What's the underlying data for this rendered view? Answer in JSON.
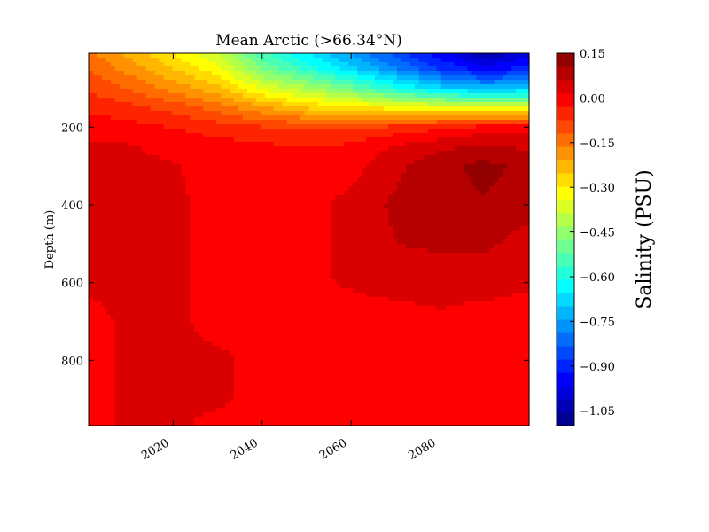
{
  "chart_data": {
    "type": "heatmap",
    "title": "Mean Arctic (>66.34°N)",
    "xlabel": "",
    "ylabel": "Depth (m)",
    "xlim": [
      2001,
      2100
    ],
    "ylim": [
      968,
      10
    ],
    "x_ticks": [
      2020,
      2040,
      2060,
      2080
    ],
    "x_tick_labels": [
      "2020",
      "2040",
      "2060",
      "2080"
    ],
    "y_ticks": [
      200,
      400,
      600,
      800
    ],
    "y_tick_labels": [
      "200",
      "400",
      "600",
      "800"
    ],
    "colorbar": {
      "label": "Salinity (PSU)",
      "range": [
        -1.1,
        0.15
      ],
      "ticks": [
        0.15,
        0.0,
        -0.15,
        -0.3,
        -0.45,
        -0.6,
        -0.75,
        -0.9,
        -1.05
      ],
      "tick_labels": [
        "0.15",
        "0.00",
        "−0.15",
        "−0.30",
        "−0.45",
        "−0.60",
        "−0.75",
        "−0.90",
        "−1.05"
      ],
      "colormap": "jet"
    },
    "years": [
      2001,
      2010,
      2020,
      2030,
      2040,
      2050,
      2060,
      2070,
      2080,
      2090,
      2100
    ],
    "depths": [
      10,
      50,
      100,
      150,
      200,
      250,
      300,
      400,
      500,
      600,
      700,
      800,
      900,
      968
    ],
    "values": [
      [
        -0.15,
        -0.22,
        -0.3,
        -0.38,
        -0.55,
        -0.65,
        -0.75,
        -0.85,
        -0.95,
        -1.05,
        -0.98
      ],
      [
        -0.12,
        -0.18,
        -0.25,
        -0.33,
        -0.48,
        -0.58,
        -0.68,
        -0.78,
        -0.88,
        -0.95,
        -0.9
      ],
      [
        -0.08,
        -0.12,
        -0.18,
        -0.24,
        -0.35,
        -0.42,
        -0.5,
        -0.6,
        -0.68,
        -0.72,
        -0.7
      ],
      [
        -0.04,
        -0.06,
        -0.09,
        -0.14,
        -0.2,
        -0.26,
        -0.28,
        -0.32,
        -0.33,
        -0.34,
        -0.33
      ],
      [
        0.0,
        -0.01,
        -0.03,
        -0.05,
        -0.07,
        -0.08,
        -0.08,
        -0.06,
        -0.04,
        -0.01,
        0.0
      ],
      [
        0.02,
        0.02,
        0.0,
        -0.01,
        -0.02,
        -0.03,
        -0.02,
        0.02,
        0.05,
        0.07,
        0.05
      ],
      [
        0.03,
        0.03,
        0.02,
        0.0,
        -0.01,
        -0.01,
        0.0,
        0.05,
        0.09,
        0.12,
        0.09
      ],
      [
        0.03,
        0.05,
        0.02,
        0.01,
        0.0,
        0.0,
        0.03,
        0.07,
        0.09,
        0.1,
        0.08
      ],
      [
        0.02,
        0.03,
        0.02,
        0.01,
        0.0,
        0.0,
        0.03,
        0.06,
        0.07,
        0.07,
        0.04
      ],
      [
        0.02,
        0.02,
        0.02,
        0.01,
        0.01,
        0.01,
        0.02,
        0.03,
        0.03,
        0.03,
        0.02
      ],
      [
        0.01,
        0.02,
        0.02,
        0.01,
        0.01,
        0.0,
        0.0,
        0.0,
        0.01,
        0.0,
        0.0
      ],
      [
        0.01,
        0.02,
        0.02,
        0.02,
        0.01,
        0.0,
        -0.01,
        -0.01,
        -0.01,
        -0.01,
        -0.01
      ],
      [
        0.01,
        0.02,
        0.02,
        0.02,
        0.01,
        -0.01,
        -0.02,
        -0.02,
        -0.01,
        -0.02,
        -0.02
      ],
      [
        0.01,
        0.02,
        0.02,
        0.01,
        0.0,
        -0.02,
        -0.02,
        -0.02,
        -0.01,
        -0.02,
        -0.02
      ]
    ]
  }
}
